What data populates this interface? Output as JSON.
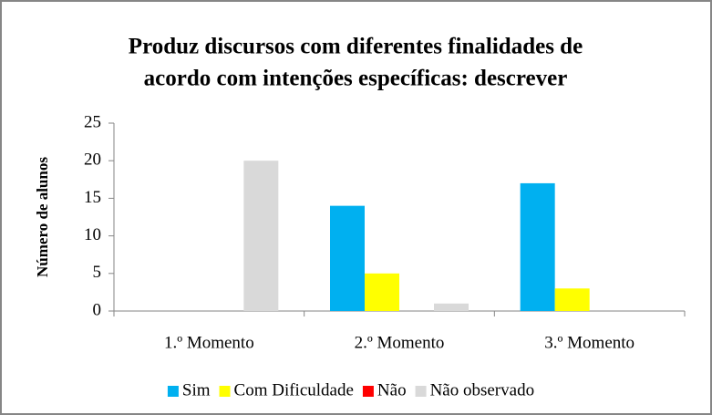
{
  "chart_data": {
    "type": "bar",
    "title": [
      "Produz discursos com diferentes finalidades de",
      "acordo com intenções específicas: descrever"
    ],
    "y_label": "Número de alunos",
    "categories": [
      "1.º Momento",
      "2.º Momento",
      "3.º Momento"
    ],
    "series": [
      {
        "name": "Sim",
        "color": "#00b0f0",
        "values": [
          0,
          14,
          17
        ]
      },
      {
        "name": "Com Dificuldade",
        "color": "#ffff00",
        "values": [
          0,
          5,
          3
        ]
      },
      {
        "name": "Não",
        "color": "#ff0000",
        "values": [
          0,
          0,
          0
        ]
      },
      {
        "name": "Não observado",
        "color": "#d9d9d9",
        "values": [
          20,
          1,
          0
        ]
      }
    ],
    "ylim": [
      0,
      25
    ],
    "yticks": [
      0,
      5,
      10,
      15,
      20,
      25
    ],
    "grid": false,
    "legend": "bottom"
  }
}
